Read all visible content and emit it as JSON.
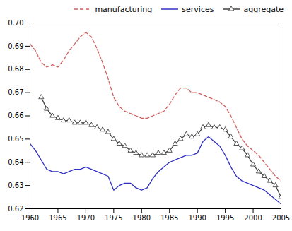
{
  "chart_data": {
    "type": "line",
    "x": [
      1960,
      1961,
      1962,
      1963,
      1964,
      1965,
      1966,
      1967,
      1968,
      1969,
      1970,
      1971,
      1972,
      1973,
      1974,
      1975,
      1976,
      1977,
      1978,
      1979,
      1980,
      1981,
      1982,
      1983,
      1984,
      1985,
      1986,
      1987,
      1988,
      1989,
      1990,
      1991,
      1992,
      1993,
      1994,
      1995,
      1996,
      1997,
      1998,
      1999,
      2000,
      2001,
      2002,
      2003,
      2004,
      2005
    ],
    "series": [
      {
        "name": "manufacturing",
        "color": "#d06060",
        "line_style": "dashed",
        "values": [
          0.691,
          0.688,
          0.683,
          0.681,
          0.682,
          0.681,
          0.684,
          0.688,
          0.691,
          0.694,
          0.696,
          0.694,
          0.689,
          0.683,
          0.676,
          0.668,
          0.664,
          0.662,
          0.661,
          0.66,
          0.659,
          0.659,
          0.66,
          0.661,
          0.662,
          0.665,
          0.669,
          0.672,
          0.672,
          0.67,
          0.67,
          0.669,
          0.668,
          0.667,
          0.666,
          0.664,
          0.66,
          0.655,
          0.65,
          0.647,
          0.645,
          0.643,
          0.64,
          0.637,
          0.634,
          0.632
        ]
      },
      {
        "name": "services",
        "color": "#3030c0",
        "line_style": "solid",
        "values": [
          0.648,
          0.645,
          0.641,
          0.637,
          0.636,
          0.636,
          0.635,
          0.636,
          0.637,
          0.637,
          0.638,
          0.637,
          0.636,
          0.635,
          0.634,
          0.628,
          0.63,
          0.631,
          0.631,
          0.629,
          0.628,
          0.629,
          0.633,
          0.636,
          0.638,
          0.64,
          0.641,
          0.642,
          0.643,
          0.643,
          0.644,
          0.649,
          0.651,
          0.649,
          0.647,
          0.643,
          0.638,
          0.634,
          0.632,
          0.631,
          0.63,
          0.629,
          0.628,
          0.626,
          0.624,
          0.622
        ]
      },
      {
        "name": "aggregate",
        "color": "#404040",
        "line_style": "solid",
        "marker": "triangle",
        "values": [
          null,
          null,
          0.668,
          0.663,
          0.66,
          0.659,
          0.658,
          0.658,
          0.657,
          0.657,
          0.657,
          0.656,
          0.655,
          0.654,
          0.653,
          0.65,
          0.648,
          0.647,
          0.645,
          0.644,
          0.643,
          0.643,
          0.643,
          0.644,
          0.644,
          0.645,
          0.648,
          0.65,
          0.652,
          0.651,
          0.652,
          0.655,
          0.656,
          0.655,
          0.655,
          0.654,
          0.651,
          0.648,
          0.646,
          0.643,
          0.639,
          0.636,
          0.634,
          0.632,
          0.63,
          0.625
        ]
      }
    ],
    "xlim": [
      1960,
      2005
    ],
    "ylim": [
      0.62,
      0.7
    ],
    "xticks": [
      1960,
      1965,
      1970,
      1975,
      1980,
      1985,
      1990,
      1995,
      2000,
      2005
    ],
    "yticks": [
      0.62,
      0.63,
      0.64,
      0.65,
      0.66,
      0.67,
      0.68,
      0.69,
      {
        "value": 0.7,
        "label": "0.70"
      }
    ],
    "legend": "upper right",
    "grid": false
  }
}
